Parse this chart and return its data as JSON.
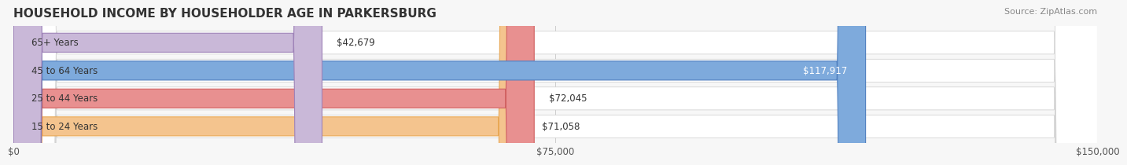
{
  "title": "HOUSEHOLD INCOME BY HOUSEHOLDER AGE IN PARKERSBURG",
  "source": "Source: ZipAtlas.com",
  "categories": [
    "15 to 24 Years",
    "25 to 44 Years",
    "45 to 64 Years",
    "65+ Years"
  ],
  "values": [
    71058,
    72045,
    117917,
    42679
  ],
  "bar_colors": [
    "#f4c48e",
    "#e89090",
    "#7eaadc",
    "#c9b8d8"
  ],
  "bar_edge_colors": [
    "#e8a855",
    "#d06060",
    "#4f7fbf",
    "#9e82b8"
  ],
  "label_colors": [
    "#555555",
    "#555555",
    "#ffffff",
    "#555555"
  ],
  "value_labels": [
    "$71,058",
    "$72,045",
    "$117,917",
    "$42,679"
  ],
  "bg_bar_color": "#f0f0f0",
  "xlim": [
    0,
    150000
  ],
  "xticks": [
    0,
    75000,
    150000
  ],
  "xticklabels": [
    "$0",
    "$75,000",
    "$150,000"
  ],
  "title_fontsize": 11,
  "source_fontsize": 8,
  "label_fontsize": 8.5,
  "value_fontsize": 8.5,
  "tick_fontsize": 8.5,
  "background_color": "#f7f7f7"
}
